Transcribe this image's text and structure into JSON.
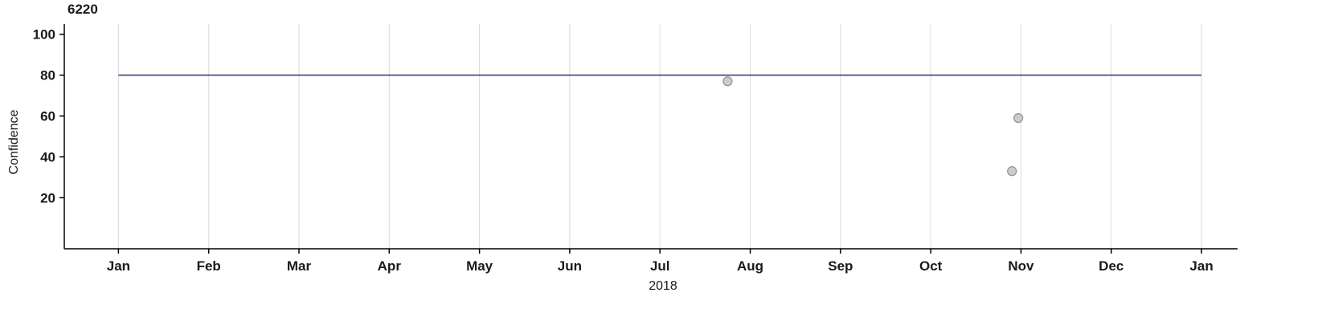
{
  "chart_data": {
    "type": "scatter",
    "title": "6220",
    "xlabel": "2018",
    "ylabel": "Confidence",
    "x_tick_labels": [
      "Jan",
      "Feb",
      "Mar",
      "Apr",
      "May",
      "Jun",
      "Jul",
      "Aug",
      "Sep",
      "Oct",
      "Nov",
      "Dec",
      "Jan"
    ],
    "x_tick_positions": [
      0,
      1,
      2,
      3,
      4,
      5,
      6,
      7,
      8,
      9,
      10,
      11,
      12
    ],
    "xlim": [
      -0.6,
      12.4
    ],
    "y_ticks": [
      20,
      40,
      60,
      80,
      100
    ],
    "ylim": [
      -5,
      105
    ],
    "grid": "vertical-only",
    "legend": "none",
    "reference_line": {
      "y": 80,
      "x_start": 0,
      "x_end": 12,
      "color": "#2e2e78"
    },
    "points": [
      {
        "x_month": 6.75,
        "y": 77
      },
      {
        "x_month": 9.97,
        "y": 59
      },
      {
        "x_month": 9.9,
        "y": 33
      }
    ],
    "point_style": {
      "fill": "#cbcbcb",
      "stroke": "#919191",
      "radius": 5.5
    },
    "colors": {
      "axis": "#000000",
      "grid": "#dadada",
      "tick_text": "#1a1a1a"
    }
  }
}
